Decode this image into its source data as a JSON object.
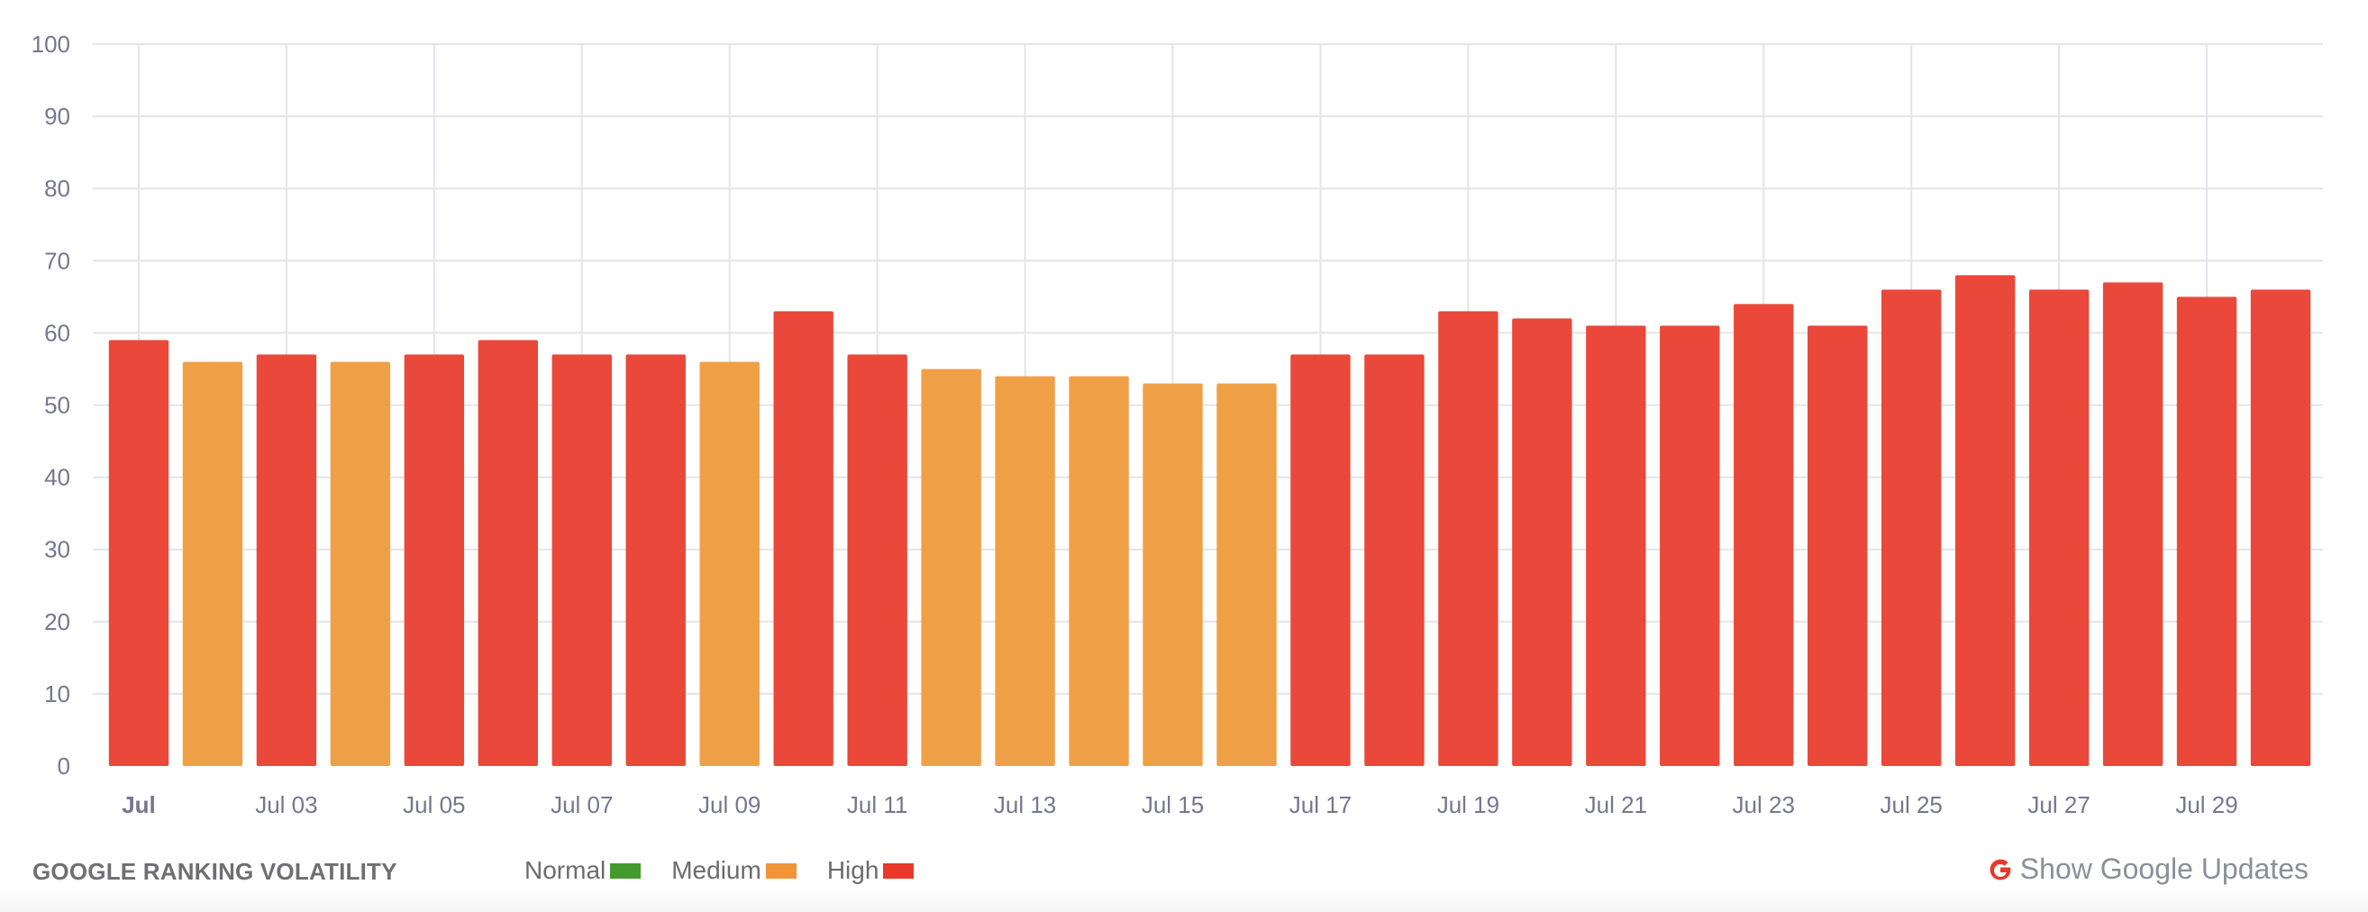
{
  "chart_data": {
    "type": "bar",
    "title": "GOOGLE RANKING VOLATILITY",
    "xlabel": "",
    "ylabel": "",
    "ylim": [
      0,
      100
    ],
    "yticks": [
      0,
      10,
      20,
      30,
      40,
      50,
      60,
      70,
      80,
      90,
      100
    ],
    "grid": true,
    "legend_position": "bottom",
    "categories": [
      "Jul 01",
      "Jul 02",
      "Jul 03",
      "Jul 04",
      "Jul 05",
      "Jul 06",
      "Jul 07",
      "Jul 08",
      "Jul 09",
      "Jul 10",
      "Jul 11",
      "Jul 12",
      "Jul 13",
      "Jul 14",
      "Jul 15",
      "Jul 16",
      "Jul 17",
      "Jul 18",
      "Jul 19",
      "Jul 20",
      "Jul 21",
      "Jul 22",
      "Jul 23",
      "Jul 24",
      "Jul 25",
      "Jul 26",
      "Jul 27",
      "Jul 28",
      "Jul 29",
      "Jul 30"
    ],
    "values": [
      59,
      56,
      57,
      56,
      57,
      59,
      57,
      57,
      56,
      63,
      57,
      55,
      54,
      54,
      53,
      53,
      57,
      57,
      63,
      62,
      61,
      61,
      64,
      61,
      66,
      68,
      66,
      67,
      65,
      66
    ],
    "levels": [
      "High",
      "Medium",
      "High",
      "Medium",
      "High",
      "High",
      "High",
      "High",
      "Medium",
      "High",
      "High",
      "Medium",
      "Medium",
      "Medium",
      "Medium",
      "Medium",
      "High",
      "High",
      "High",
      "High",
      "High",
      "High",
      "High",
      "High",
      "High",
      "High",
      "High",
      "High",
      "High",
      "High"
    ],
    "xtick_labels": [
      "Jul",
      "Jul 03",
      "Jul 05",
      "Jul 07",
      "Jul 09",
      "Jul 11",
      "Jul 13",
      "Jul 15",
      "Jul 17",
      "Jul 19",
      "Jul 21",
      "Jul 23",
      "Jul 25",
      "Jul 27",
      "Jul 29"
    ],
    "legend": [
      {
        "label": "Normal",
        "color": "#439a2c"
      },
      {
        "label": "Medium",
        "color": "#f09437"
      },
      {
        "label": "High",
        "color": "#e8392b"
      }
    ]
  },
  "colors": {
    "High": "#e9483a",
    "Medium": "#efa047",
    "Normal": "#439a2c",
    "grid": "#e4e4ea",
    "axis_text": "#767690"
  },
  "footer": {
    "title": "GOOGLE RANKING VOLATILITY",
    "legend": [
      {
        "label": "Normal"
      },
      {
        "label": "Medium"
      },
      {
        "label": "High"
      }
    ],
    "show_updates_label": "Show Google Updates",
    "show_updates_icon": "google-g-icon"
  }
}
